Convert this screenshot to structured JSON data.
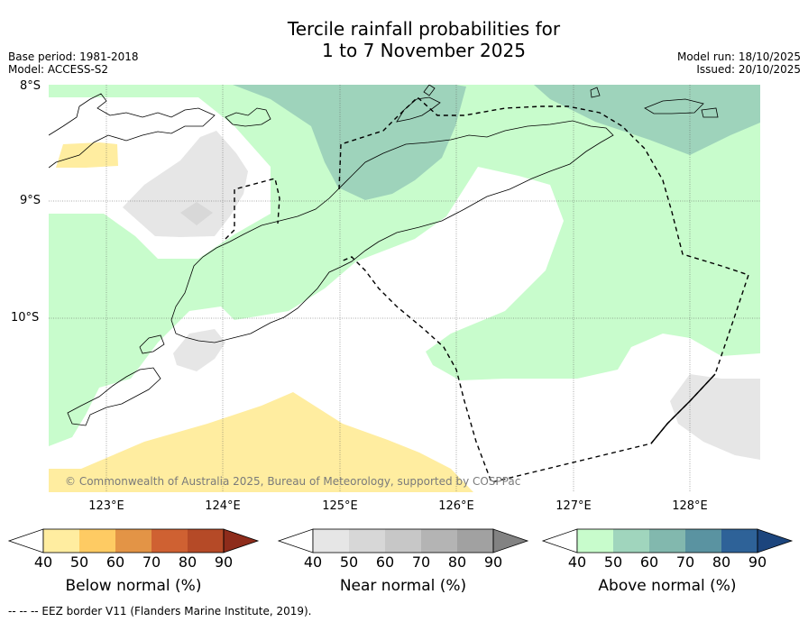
{
  "title": {
    "line1": "Tercile rainfall probabilities for",
    "line2": "1 to 7 November 2025"
  },
  "meta": {
    "base_period": "Base period: 1981-2018",
    "model": "Model: ACCESS-S2",
    "model_run": "Model run: 18/10/2025",
    "issued": "Issued: 20/10/2025"
  },
  "map": {
    "lat_labels": [
      "8°S",
      "9°S",
      "10°S"
    ],
    "lon_labels": [
      "123°E",
      "124°E",
      "125°E",
      "126°E",
      "127°E",
      "128°E"
    ],
    "copyright": "© Commonwealth of Australia 2025, Bureau of Meteorology, supported by COSPPac",
    "colors": {
      "ocean": "#ffffff",
      "above_normal_50": "#c8fccc",
      "above_normal_60": "#9ed3bb",
      "near_normal_50": "#e6e6e6",
      "near_normal_60": "#d8d8d8",
      "below_normal_50": "#ffeda0",
      "below_normal_60": "#fed976"
    }
  },
  "colorbars": [
    {
      "name": "below",
      "title": "Below normal (%)",
      "ticks": [
        "40",
        "50",
        "60",
        "70",
        "80",
        "90"
      ],
      "colors": [
        "#ffffff",
        "#ffeda0",
        "#fecb63",
        "#e39446",
        "#cf6132",
        "#b54a27",
        "#8e2c1b"
      ]
    },
    {
      "name": "near",
      "title": "Near normal (%)",
      "ticks": [
        "40",
        "50",
        "60",
        "70",
        "80",
        "90"
      ],
      "colors": [
        "#ffffff",
        "#e6e6e6",
        "#d7d7d7",
        "#c7c7c7",
        "#b4b4b4",
        "#a1a1a1",
        "#828282"
      ]
    },
    {
      "name": "above",
      "title": "Above normal (%)",
      "ticks": [
        "40",
        "50",
        "60",
        "70",
        "80",
        "90"
      ],
      "colors": [
        "#ffffff",
        "#c8fccc",
        "#a0d5bd",
        "#82b8ae",
        "#5a93a1",
        "#2e6298",
        "#1c457d"
      ]
    }
  ],
  "footnote": "--  --  -- EEZ border V11 (Flanders Marine Institute, 2019)."
}
